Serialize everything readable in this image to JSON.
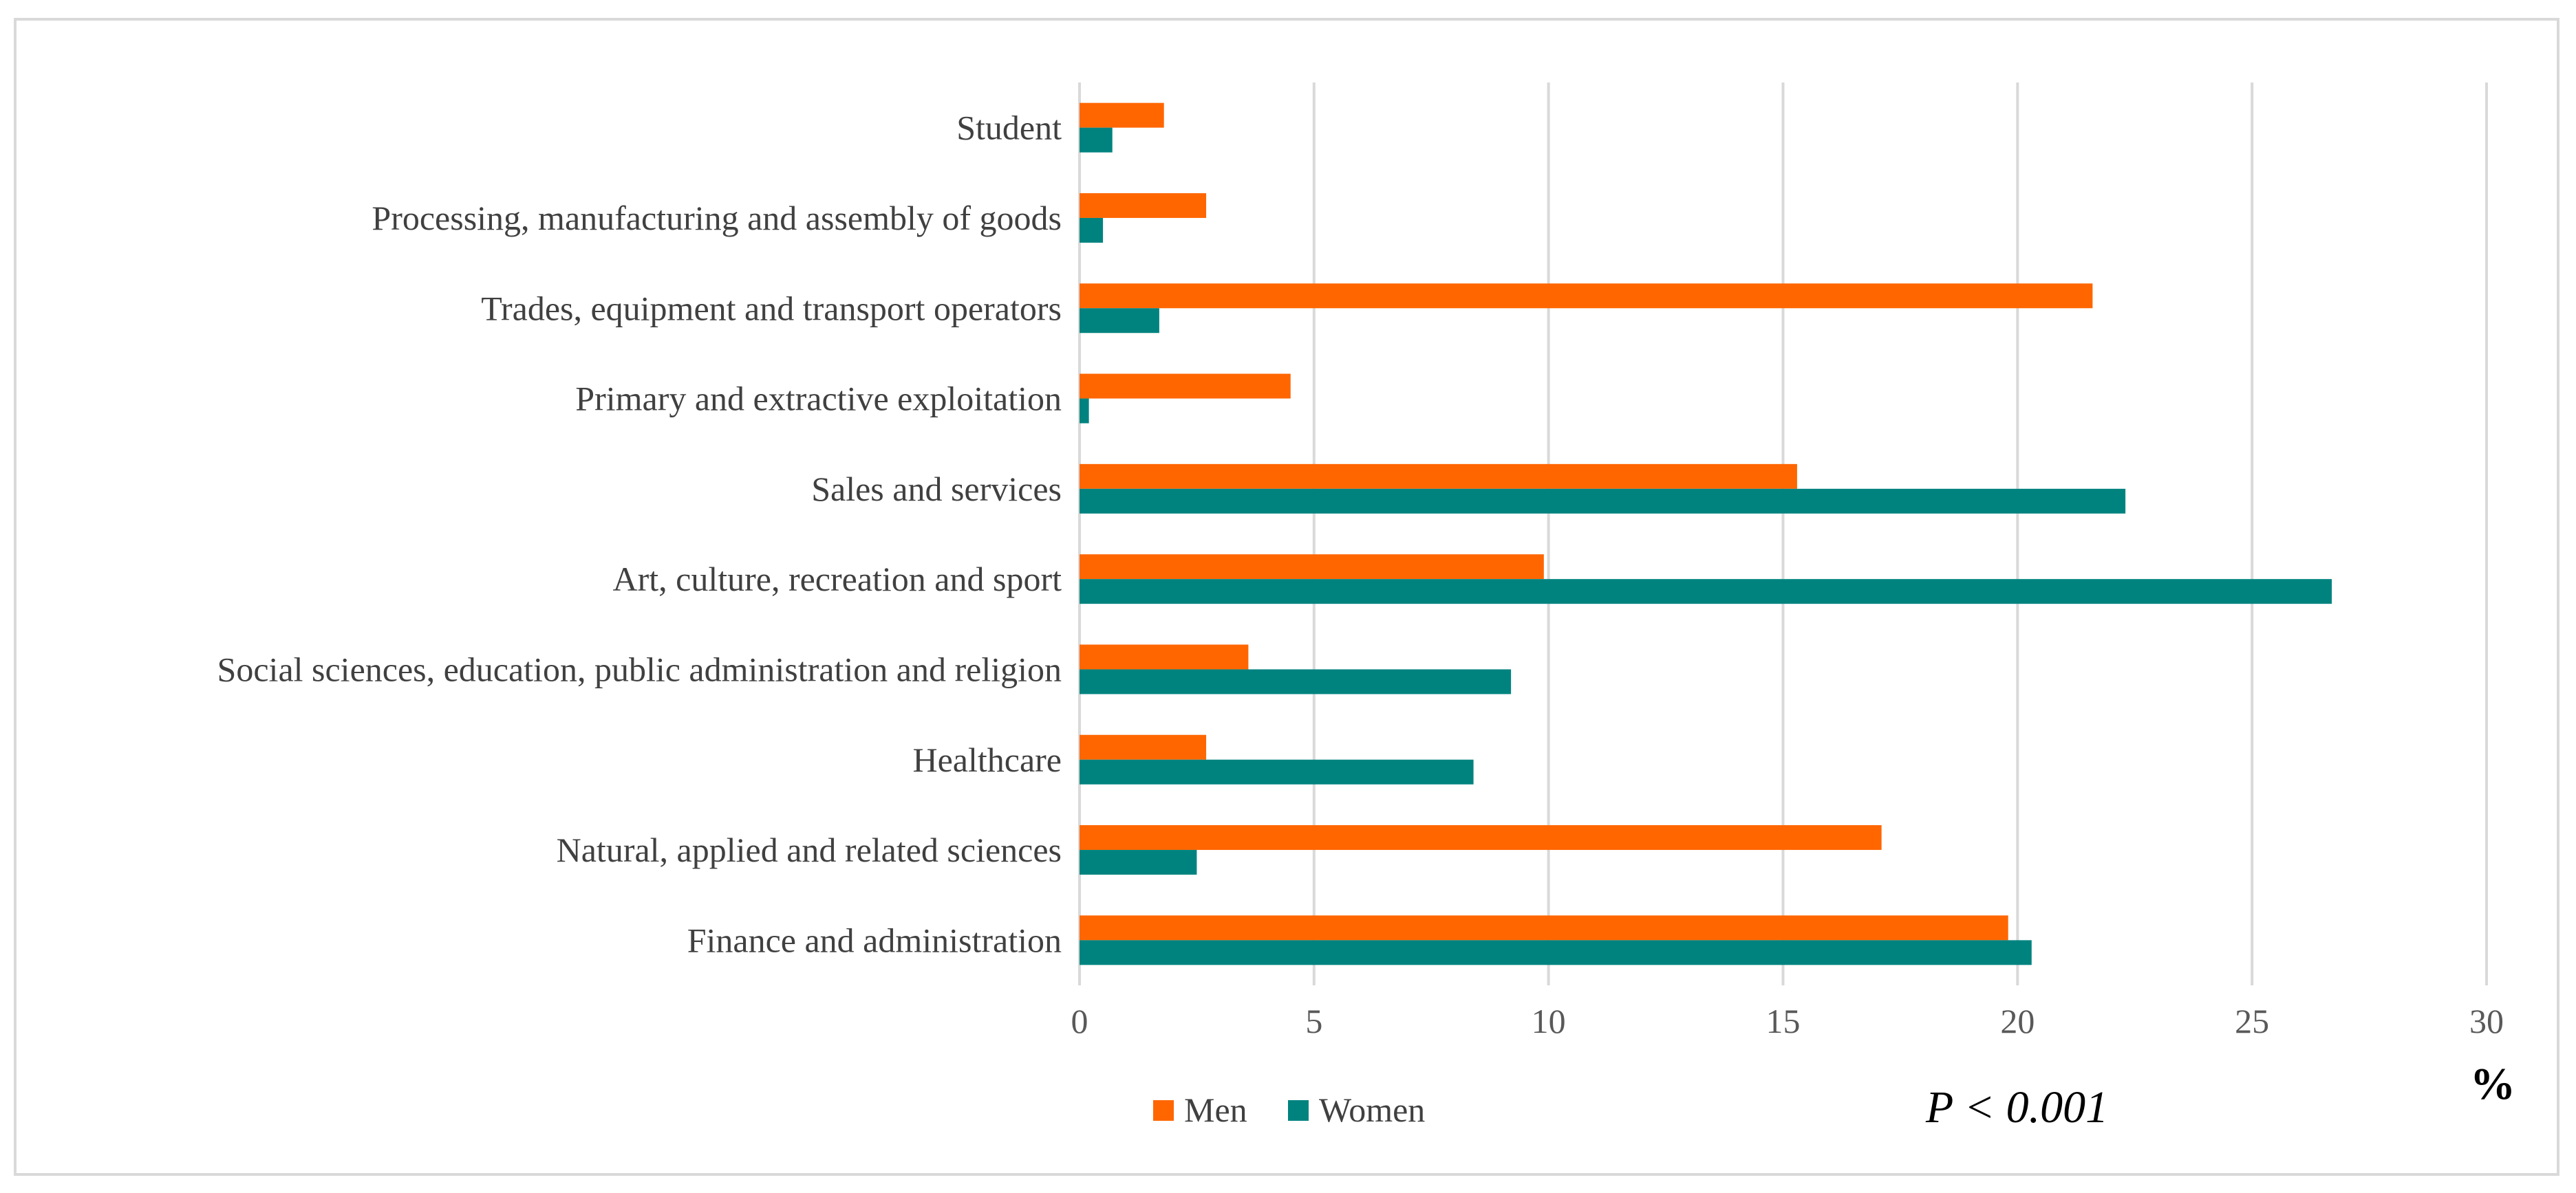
{
  "chart_data": {
    "type": "bar",
    "orientation": "horizontal",
    "categories": [
      "Student",
      "Processing, manufacturing and assembly of goods",
      "Trades, equipment and transport operators",
      "Primary and extractive exploitation",
      "Sales and services",
      "Art, culture, recreation and sport",
      "Social sciences, education, public administration and religion",
      "Healthcare",
      "Natural, applied and related sciences",
      "Finance and administration"
    ],
    "series": [
      {
        "name": "Men",
        "color": "#ff6600",
        "values": [
          1.8,
          2.7,
          21.6,
          4.5,
          15.3,
          9.9,
          3.6,
          2.7,
          17.1,
          19.8
        ]
      },
      {
        "name": "Women",
        "color": "#00837f",
        "values": [
          0.7,
          0.5,
          1.7,
          0.2,
          22.3,
          26.7,
          9.2,
          8.4,
          2.5,
          20.3
        ]
      }
    ],
    "xlim": [
      0,
      30
    ],
    "xticks": [
      "0",
      "5",
      "10",
      "15",
      "20",
      "25",
      "30"
    ],
    "xlabel": "%",
    "annotation": "P < 0.001",
    "legend_position": "bottom-left",
    "grid": true
  }
}
